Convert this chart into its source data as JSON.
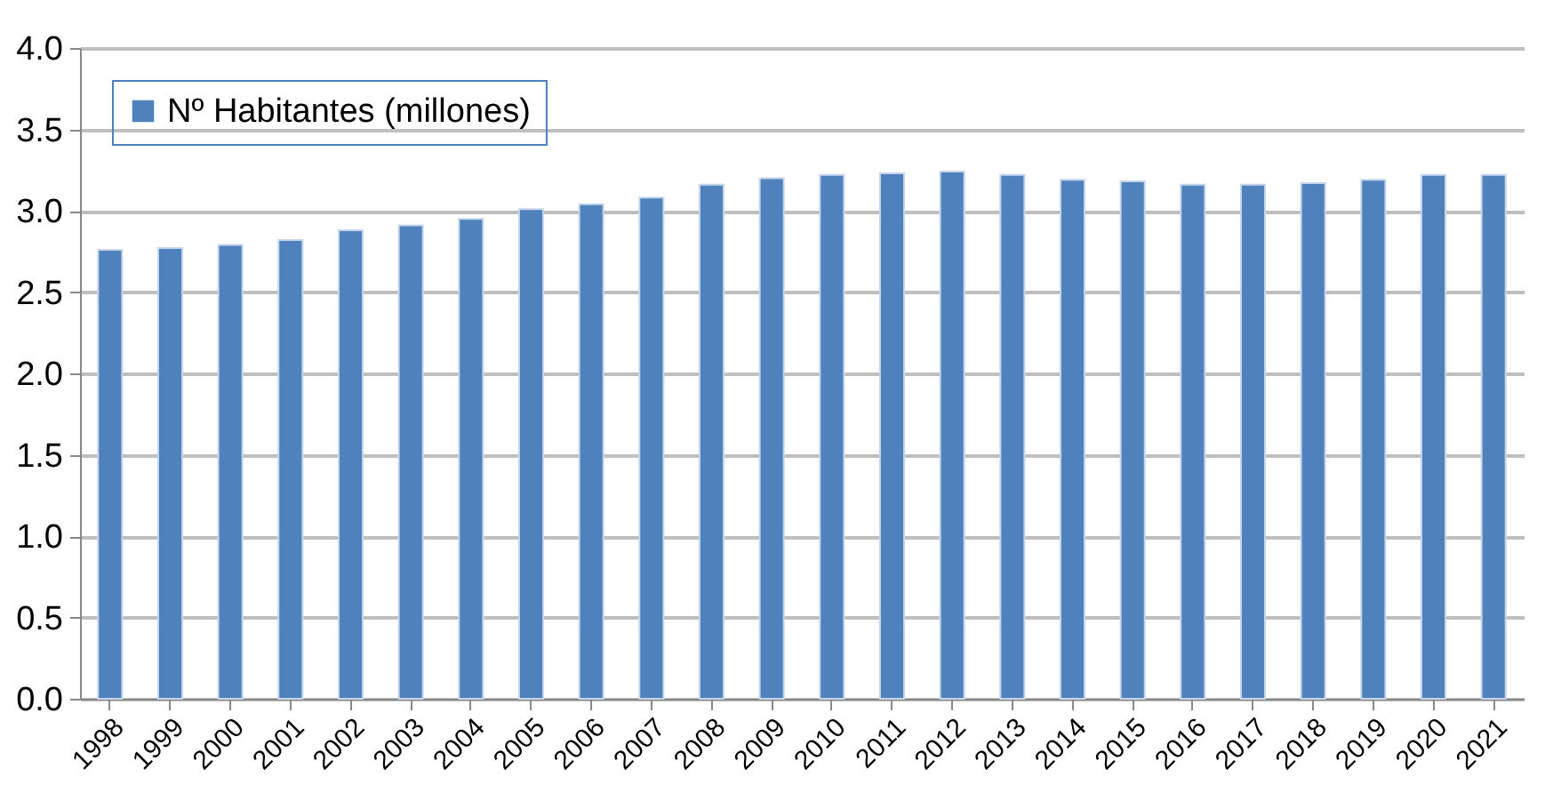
{
  "chart_data": {
    "type": "bar",
    "categories": [
      "1998",
      "1999",
      "2000",
      "2001",
      "2002",
      "2003",
      "2004",
      "2005",
      "2006",
      "2007",
      "2008",
      "2009",
      "2010",
      "2011",
      "2012",
      "2013",
      "2014",
      "2015",
      "2016",
      "2017",
      "2018",
      "2019",
      "2020",
      "2021"
    ],
    "series": [
      {
        "name": "Nº Habitantes (millones)",
        "color": "#4f81bd",
        "values": [
          2.76,
          2.77,
          2.79,
          2.82,
          2.88,
          2.91,
          2.95,
          3.01,
          3.04,
          3.08,
          3.16,
          3.2,
          3.22,
          3.23,
          3.24,
          3.22,
          3.19,
          3.18,
          3.16,
          3.16,
          3.17,
          3.19,
          3.22,
          3.22
        ]
      }
    ],
    "ylim": [
      0,
      4
    ],
    "yticks": [
      {
        "value": 0,
        "label": "0.0"
      },
      {
        "value": 0.5,
        "label": "0.5"
      },
      {
        "value": 1,
        "label": "1.0"
      },
      {
        "value": 1.5,
        "label": "1.5"
      },
      {
        "value": 2,
        "label": "2.0"
      },
      {
        "value": 2.5,
        "label": "2.5"
      },
      {
        "value": 3,
        "label": "3.0"
      },
      {
        "value": 3.5,
        "label": "3.5"
      },
      {
        "value": 4,
        "label": "4.0"
      }
    ],
    "grid": "y",
    "legend": "top left"
  }
}
